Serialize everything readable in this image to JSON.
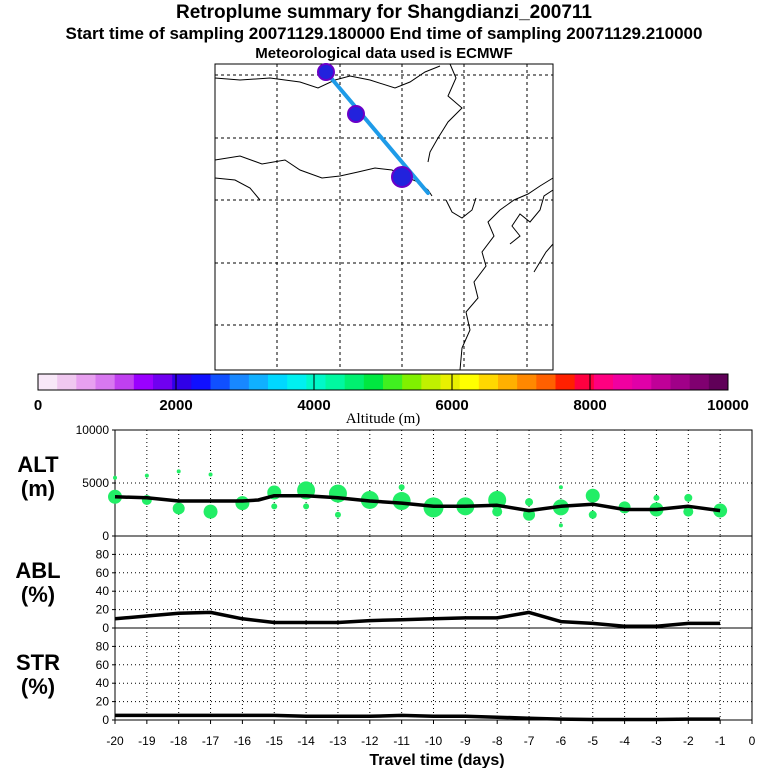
{
  "header": {
    "title": "Retroplume summary for Shangdianzi_200711",
    "sampling": "Start time of sampling 20071129.180000     End time of sampling 20071129.210000",
    "met": "Meteorological data used is ECMWF"
  },
  "map": {
    "track_color": "#1e9be8",
    "marker_color": "#2222dd",
    "markers": [
      "plume-start",
      "plume-mid",
      "plume-receptor"
    ]
  },
  "colorbar": {
    "label": "Altitude (m)",
    "ticks": [
      "0",
      "2000",
      "4000",
      "6000",
      "8000",
      "10000"
    ],
    "range": [
      0,
      10000
    ],
    "colors": [
      "#f8e8f8",
      "#f0c8f0",
      "#e8a0f0",
      "#d878f0",
      "#c040f0",
      "#9a00ff",
      "#7000f0",
      "#3000e8",
      "#1010ff",
      "#1050ff",
      "#1888ff",
      "#10b0ff",
      "#00d8ff",
      "#00f0f0",
      "#00f8c8",
      "#00f8a0",
      "#00f070",
      "#00e840",
      "#40f020",
      "#80f000",
      "#c0f000",
      "#e8f000",
      "#ffff00",
      "#ffd800",
      "#ffb000",
      "#ff8800",
      "#ff6000",
      "#ff2000",
      "#ff0040",
      "#ff0080",
      "#f000a0",
      "#e000a8",
      "#c00098",
      "#a00088",
      "#800070",
      "#600058"
    ]
  },
  "chart_data": [
    {
      "type": "scatter+line",
      "name": "ALT",
      "title": "",
      "ylabel": "ALT\n(m)",
      "ylabel_lines": [
        "ALT",
        "(m)"
      ],
      "xlabel": "Travel time (days)",
      "xlim": [
        -20,
        0
      ],
      "ylim": [
        0,
        10000
      ],
      "yticks": [
        "10000",
        "5000",
        "0"
      ],
      "ytick_values": [
        10000,
        5000,
        0
      ],
      "line": {
        "x": [
          -20,
          -19,
          -18,
          -17,
          -16,
          -15.5,
          -15,
          -14,
          -13,
          -12,
          -11,
          -10,
          -9,
          -8,
          -7,
          -6,
          -5,
          -4,
          -3,
          -2,
          -1
        ],
        "y": [
          3700,
          3600,
          3300,
          3300,
          3300,
          3400,
          3800,
          3800,
          3600,
          3300,
          3100,
          2800,
          2800,
          2900,
          2400,
          2800,
          3000,
          2500,
          2500,
          2800,
          2400
        ]
      },
      "points": [
        {
          "x": -20,
          "y": 3700,
          "s": 7
        },
        {
          "x": -20,
          "y": 5500,
          "s": 2
        },
        {
          "x": -19,
          "y": 3400,
          "s": 5
        },
        {
          "x": -19,
          "y": 5700,
          "s": 2
        },
        {
          "x": -18,
          "y": 2600,
          "s": 6
        },
        {
          "x": -18,
          "y": 6100,
          "s": 2
        },
        {
          "x": -17,
          "y": 2300,
          "s": 7
        },
        {
          "x": -17,
          "y": 5800,
          "s": 2
        },
        {
          "x": -16,
          "y": 3100,
          "s": 7
        },
        {
          "x": -15,
          "y": 4100,
          "s": 7
        },
        {
          "x": -15,
          "y": 2800,
          "s": 3
        },
        {
          "x": -14,
          "y": 4300,
          "s": 9
        },
        {
          "x": -14,
          "y": 2800,
          "s": 3
        },
        {
          "x": -13,
          "y": 4000,
          "s": 9
        },
        {
          "x": -13,
          "y": 2000,
          "s": 3
        },
        {
          "x": -12,
          "y": 3400,
          "s": 9
        },
        {
          "x": -11,
          "y": 3300,
          "s": 9
        },
        {
          "x": -11,
          "y": 4600,
          "s": 3
        },
        {
          "x": -10,
          "y": 2700,
          "s": 10
        },
        {
          "x": -9,
          "y": 2800,
          "s": 9
        },
        {
          "x": -8,
          "y": 3400,
          "s": 9
        },
        {
          "x": -8,
          "y": 2300,
          "s": 5
        },
        {
          "x": -7,
          "y": 2000,
          "s": 6
        },
        {
          "x": -7,
          "y": 3200,
          "s": 4
        },
        {
          "x": -6,
          "y": 2700,
          "s": 8
        },
        {
          "x": -6,
          "y": 4600,
          "s": 2
        },
        {
          "x": -6,
          "y": 1000,
          "s": 2
        },
        {
          "x": -5,
          "y": 3800,
          "s": 7
        },
        {
          "x": -5,
          "y": 2000,
          "s": 4
        },
        {
          "x": -4,
          "y": 2700,
          "s": 6
        },
        {
          "x": -3,
          "y": 2500,
          "s": 7
        },
        {
          "x": -3,
          "y": 3600,
          "s": 3
        },
        {
          "x": -2,
          "y": 3600,
          "s": 4
        },
        {
          "x": -2,
          "y": 2300,
          "s": 5
        },
        {
          "x": -1,
          "y": 2400,
          "s": 7
        }
      ],
      "point_color": "#22ee66"
    },
    {
      "type": "line",
      "name": "ABL",
      "ylabel_lines": [
        "ABL",
        "(%)"
      ],
      "xlim": [
        -20,
        0
      ],
      "ylim": [
        0,
        100
      ],
      "yticks": [
        "80",
        "60",
        "40",
        "20",
        "0"
      ],
      "ytick_values": [
        80,
        60,
        40,
        20,
        0
      ],
      "x": [
        -20,
        -19,
        -18,
        -17,
        -16,
        -15,
        -14,
        -13,
        -12,
        -11,
        -10,
        -9,
        -8,
        -7,
        -6,
        -5,
        -4,
        -3,
        -2,
        -1
      ],
      "y": [
        10,
        13,
        16,
        17,
        10,
        6,
        6,
        6,
        8,
        9,
        10,
        11,
        11,
        17,
        7,
        5,
        2,
        2,
        5,
        5
      ]
    },
    {
      "type": "line",
      "name": "STR",
      "ylabel_lines": [
        "STR",
        "(%)"
      ],
      "xlim": [
        -20,
        0
      ],
      "ylim": [
        0,
        100
      ],
      "yticks": [
        "80",
        "60",
        "40",
        "20",
        "0"
      ],
      "ytick_values": [
        80,
        60,
        40,
        20,
        0
      ],
      "x": [
        -20,
        -19,
        -18,
        -17,
        -16,
        -15,
        -14,
        -13,
        -12,
        -11,
        -10,
        -9,
        -8,
        -7,
        -6,
        -5,
        -4,
        -3,
        -2,
        -1
      ],
      "y": [
        5,
        5,
        5,
        5,
        5,
        5,
        4,
        4,
        4,
        5,
        4,
        4,
        3,
        2,
        1,
        0.5,
        0.5,
        0.5,
        1,
        1
      ]
    }
  ],
  "x_axis": {
    "tick_labels": [
      "-20",
      "-19",
      "-18",
      "-17",
      "-16",
      "-15",
      "-14",
      "-13",
      "-12",
      "-11",
      "-10",
      "-9",
      "-8",
      "-7",
      "-6",
      "-5",
      "-4",
      "-3",
      "-2",
      "-1",
      "0"
    ],
    "tick_values": [
      -20,
      -19,
      -18,
      -17,
      -16,
      -15,
      -14,
      -13,
      -12,
      -11,
      -10,
      -9,
      -8,
      -7,
      -6,
      -5,
      -4,
      -3,
      -2,
      -1,
      0
    ],
    "label": "Travel time (days)"
  }
}
